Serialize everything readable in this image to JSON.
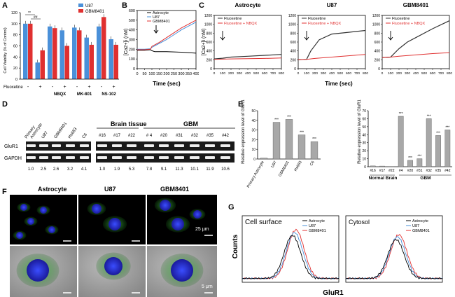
{
  "panel_labels": {
    "a": "A",
    "b": "B",
    "c": "C",
    "d": "D",
    "e": "E",
    "f": "F",
    "g": "G"
  },
  "panelA": {
    "ylabel": "Cell Viability (% of Control)",
    "yticks": [
      "0",
      "20",
      "40",
      "60",
      "80",
      "100",
      "120"
    ],
    "row1_label": "Fluoxetine",
    "row1_marks": [
      "-",
      "+",
      "-",
      "+",
      "-",
      "+",
      "-",
      "+"
    ],
    "drugs": [
      "NBQX",
      "MK-801",
      "NS-102"
    ],
    "legend": [
      "U87",
      "GBM8401"
    ],
    "sig": [
      "**",
      "##"
    ],
    "colors": {
      "u87": "#4a90d9",
      "gbm": "#e03030"
    }
  },
  "panelB": {
    "ylabel": "[Ca2+]i (nM)",
    "xlabel": "Time (sec)",
    "yticks": [
      "0",
      "100",
      "200",
      "300",
      "400",
      "500",
      "600"
    ],
    "xticks": [
      "0",
      "50",
      "100",
      "150",
      "200",
      "250",
      "300",
      "350",
      "400"
    ],
    "legend": [
      "Astrocyte",
      "U87",
      "GBM8401"
    ],
    "colors": {
      "astro": "#000000",
      "u87": "#4a90d9",
      "gbm": "#e03030"
    }
  },
  "panelC": {
    "ylabel": "[Ca2+]i (nM)",
    "xlabel": "Time (sec)",
    "titles": [
      "Astrocyte",
      "U87",
      "GBM8401"
    ],
    "legend": [
      "Fluoxetine",
      "Fluoxetine + NBQX"
    ],
    "yticks": [
      "0",
      "200",
      "400",
      "600",
      "800",
      "1000",
      "1200"
    ],
    "xticks": [
      "0",
      "100",
      "200",
      "300",
      "400",
      "500",
      "600",
      "700",
      "800"
    ]
  },
  "panelD": {
    "left_cols": [
      "Primary Astrocyte",
      "U87",
      "GBM8401",
      "Hs683",
      "C6"
    ],
    "rows": [
      "GluR1",
      "GAPDH"
    ],
    "left_values": [
      "1.0",
      "2.5",
      "2.6",
      "3.2",
      "4.1"
    ],
    "brain_title": "Brain tissue",
    "gbm_title": "GBM",
    "brain_cols": [
      "#16",
      "#17",
      "#22"
    ],
    "gbm_cols": [
      "# 4",
      "#20",
      "#31",
      "#32",
      "#35",
      "#42"
    ],
    "right_values": [
      "1.0",
      "1.9",
      "5.3",
      "7.8",
      "9.1",
      "11.3",
      "10.1",
      "11.9",
      "10.6"
    ]
  },
  "panelE": {
    "ylabel": "Relative expression level of GluR1",
    "sig": "***",
    "normal_brain": "Normal Brain",
    "gbm_group": "GBM"
  },
  "panelF": {
    "titles": [
      "Astrocyte",
      "U87",
      "GBM8401"
    ],
    "scale_top": "25 μm",
    "scale_bottom": "5 μm"
  },
  "panelG": {
    "ylabel": "Counts",
    "xlabel": "GluR1",
    "titles": [
      "Cell surface",
      "Cytosol"
    ],
    "legend": [
      "Astrocyte",
      "U87",
      "GBM8401"
    ]
  },
  "chart_data": [
    {
      "type": "bar",
      "panel": "A",
      "categories": [
        "Fluoxetine -",
        "Fluoxetine +",
        "NBQX -",
        "NBQX +",
        "MK-801 -",
        "MK-801 +",
        "NS-102 -",
        "NS-102 +"
      ],
      "ylabel": "Cell Viability (% of Control)",
      "ylim": [
        0,
        120
      ],
      "series": [
        {
          "name": "U87",
          "values": [
            100,
            30,
            95,
            88,
            93,
            75,
            95,
            72
          ]
        },
        {
          "name": "GBM8401",
          "values": [
            100,
            52,
            92,
            60,
            88,
            62,
            112,
            62
          ]
        }
      ],
      "legend_position": "top-right"
    },
    {
      "type": "line",
      "panel": "B",
      "xlabel": "Time (sec)",
      "ylabel": "[Ca2+]i (nM)",
      "xlim": [
        0,
        400
      ],
      "ylim": [
        0,
        600
      ],
      "series": [
        {
          "name": "Astrocyte",
          "x": [
            0,
            50,
            90,
            100,
            120,
            200,
            300,
            400
          ],
          "y": [
            190,
            190,
            195,
            185,
            175,
            175,
            170,
            160
          ]
        },
        {
          "name": "U87",
          "x": [
            0,
            50,
            90,
            100,
            150,
            200,
            300,
            400
          ],
          "y": [
            200,
            200,
            205,
            220,
            260,
            300,
            400,
            480
          ]
        },
        {
          "name": "GBM8401",
          "x": [
            0,
            50,
            90,
            100,
            150,
            200,
            300,
            400
          ],
          "y": [
            195,
            195,
            200,
            230,
            270,
            320,
            420,
            500
          ]
        }
      ],
      "legend_position": "top-left"
    },
    {
      "type": "line",
      "panel": "C-Astrocyte",
      "xlabel": "Time (sec)",
      "ylabel": "[Ca2+]i (nM)",
      "xlim": [
        0,
        800
      ],
      "ylim": [
        0,
        1200
      ],
      "series": [
        {
          "name": "Fluoxetine",
          "x": [
            0,
            100,
            200,
            400,
            600,
            800
          ],
          "y": [
            220,
            235,
            260,
            280,
            300,
            320
          ]
        },
        {
          "name": "Fluoxetine + NBQX",
          "x": [
            0,
            100,
            200,
            400,
            600,
            800
          ],
          "y": [
            210,
            215,
            220,
            225,
            230,
            240
          ]
        }
      ]
    },
    {
      "type": "line",
      "panel": "C-U87",
      "xlabel": "Time (sec)",
      "ylabel": "[Ca2+]i (nM)",
      "xlim": [
        0,
        800
      ],
      "ylim": [
        0,
        1200
      ],
      "series": [
        {
          "name": "Fluoxetine",
          "x": [
            0,
            100,
            150,
            250,
            400,
            600,
            800
          ],
          "y": [
            200,
            210,
            400,
            650,
            780,
            820,
            860
          ]
        },
        {
          "name": "Fluoxetine + NBQX",
          "x": [
            0,
            100,
            200,
            400,
            600,
            800
          ],
          "y": [
            200,
            210,
            230,
            260,
            290,
            320
          ]
        }
      ]
    },
    {
      "type": "line",
      "panel": "C-GBM8401",
      "xlabel": "Time (sec)",
      "ylabel": "[Ca2+]i (nM)",
      "xlim": [
        0,
        800
      ],
      "ylim": [
        0,
        1200
      ],
      "series": [
        {
          "name": "Fluoxetine",
          "x": [
            0,
            100,
            200,
            300,
            400,
            600,
            800
          ],
          "y": [
            250,
            260,
            450,
            600,
            700,
            900,
            1080
          ]
        },
        {
          "name": "Fluoxetine + NBQX",
          "x": [
            0,
            100,
            200,
            400,
            600,
            800
          ],
          "y": [
            250,
            260,
            280,
            310,
            340,
            360
          ]
        }
      ]
    },
    {
      "type": "bar",
      "panel": "E-left",
      "categories": [
        "Primary Astrocyte",
        "U87",
        "GBM8401",
        "Hs683",
        "C6"
      ],
      "values": [
        1.0,
        38,
        41,
        25,
        18
      ],
      "ylabel": "Relative expression level of GluR1",
      "ylim": [
        0,
        50
      ]
    },
    {
      "type": "bar",
      "panel": "E-right",
      "categories": [
        "#16",
        "#17",
        "#22",
        "#4",
        "#20",
        "#31",
        "#32",
        "#35",
        "#42"
      ],
      "values": [
        1.0,
        0.8,
        0.3,
        63,
        8,
        10,
        60,
        39,
        46
      ],
      "ylabel": "Relative expression level of GluR1",
      "ylim": [
        0,
        70
      ]
    },
    {
      "type": "line",
      "panel": "G-Cell surface",
      "xlabel": "GluR1",
      "ylabel": "Counts",
      "series": [
        {
          "name": "Astrocyte"
        },
        {
          "name": "U87"
        },
        {
          "name": "GBM8401"
        }
      ]
    },
    {
      "type": "line",
      "panel": "G-Cytosol",
      "xlabel": "GluR1",
      "ylabel": "Counts",
      "series": [
        {
          "name": "Astrocyte"
        },
        {
          "name": "U87"
        },
        {
          "name": "GBM8401"
        }
      ]
    }
  ]
}
